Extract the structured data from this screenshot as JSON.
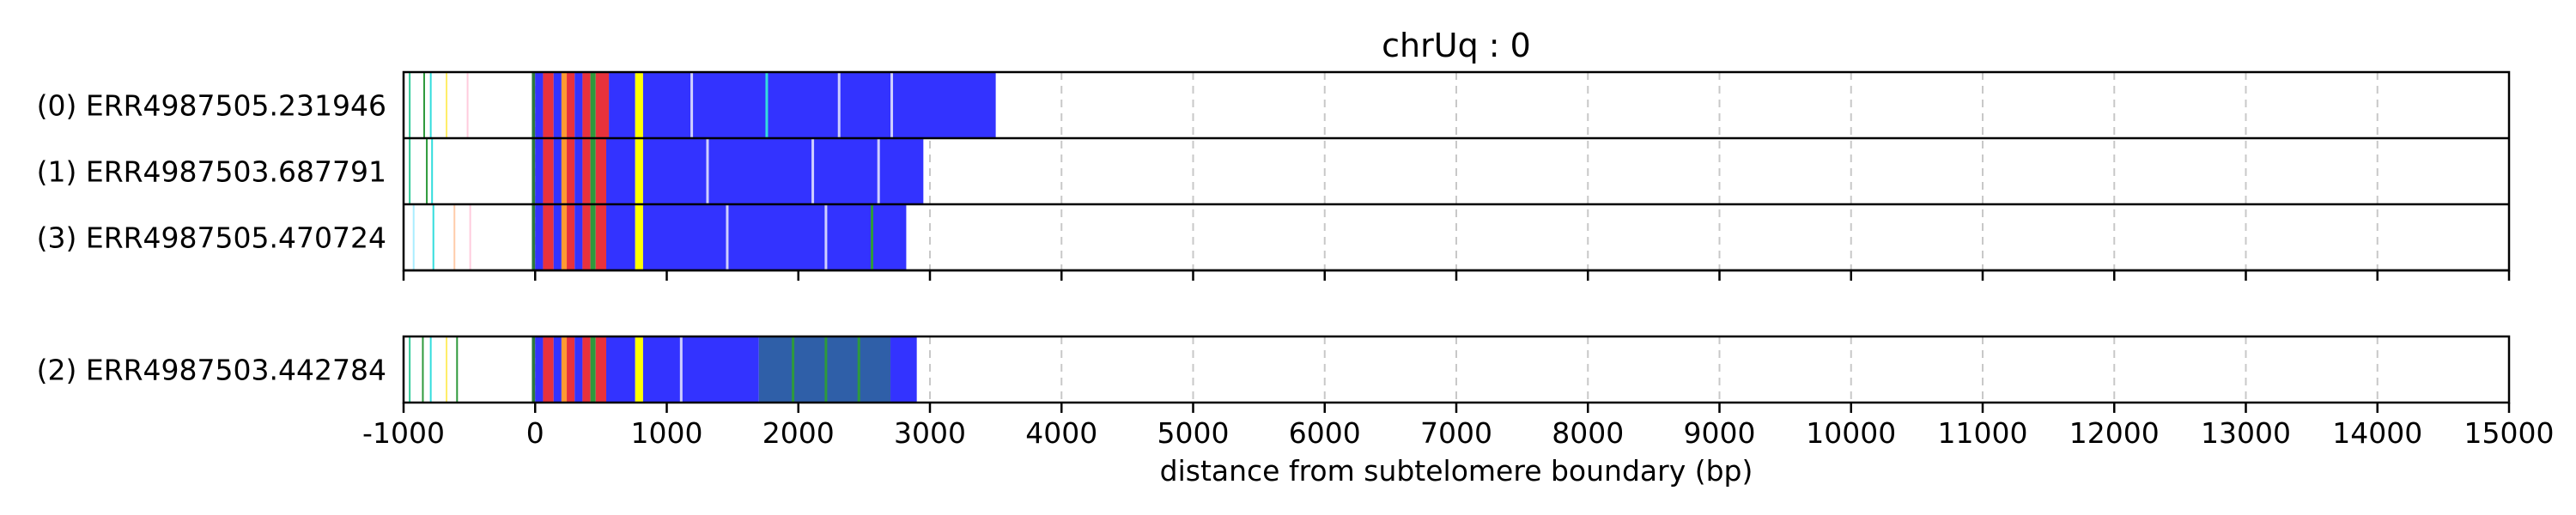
{
  "chart_data": {
    "type": "bar",
    "title": "chrUq : 0",
    "xlabel": "distance from subtelomere boundary (bp)",
    "xlim": [
      -1000,
      15000
    ],
    "xticks": [
      -1000,
      0,
      1000,
      2000,
      3000,
      4000,
      5000,
      6000,
      7000,
      8000,
      9000,
      10000,
      11000,
      12000,
      13000,
      14000,
      15000
    ],
    "grid": "vertical-dashed",
    "colors": {
      "repeat": "#3333ff",
      "dark": "#2f5fa8",
      "red": "#e8323c",
      "yellow": "#ffff00",
      "green": "#2e9a3c",
      "orange": "#ff9933",
      "cyan": "#33dddd",
      "light": "#cfcfff"
    },
    "groups": [
      {
        "reads": [
          {
            "label": "(0) ERR4987505.231946",
            "end": 3500,
            "segments": [
              {
                "start": -960,
                "end": -950,
                "color": "#33cc99"
              },
              {
                "start": -850,
                "end": -840,
                "color": "#2e9a3c"
              },
              {
                "start": -800,
                "end": -790,
                "color": "#33dddd"
              },
              {
                "start": -680,
                "end": -670,
                "color": "#ffee66"
              },
              {
                "start": -520,
                "end": -510,
                "color": "#ffccdd"
              },
              {
                "start": -25,
                "end": 0,
                "color": "#2e7a3c"
              },
              {
                "start": 0,
                "end": 60,
                "color": "#3333ff"
              },
              {
                "start": 60,
                "end": 140,
                "color": "#e8323c"
              },
              {
                "start": 140,
                "end": 200,
                "color": "#3333ff"
              },
              {
                "start": 200,
                "end": 240,
                "color": "#ff9933"
              },
              {
                "start": 240,
                "end": 300,
                "color": "#e8323c"
              },
              {
                "start": 300,
                "end": 360,
                "color": "#3333ff"
              },
              {
                "start": 360,
                "end": 420,
                "color": "#e8323c"
              },
              {
                "start": 420,
                "end": 460,
                "color": "#2e9a3c"
              },
              {
                "start": 460,
                "end": 560,
                "color": "#e8323c"
              },
              {
                "start": 560,
                "end": 760,
                "color": "#3333ff"
              },
              {
                "start": 760,
                "end": 820,
                "color": "#ffff00"
              },
              {
                "start": 820,
                "end": 3500,
                "color": "#3333ff"
              }
            ],
            "stripes": [
              {
                "at": 1750,
                "color": "#33dddd"
              },
              {
                "at": 1180,
                "color": "#cfcfff"
              },
              {
                "at": 2300,
                "color": "#cfcfff"
              },
              {
                "at": 2700,
                "color": "#cfcfff"
              }
            ]
          },
          {
            "label": "(1) ERR4987503.687791",
            "end": 2950,
            "segments": [
              {
                "start": -960,
                "end": -950,
                "color": "#33cc99"
              },
              {
                "start": -830,
                "end": -820,
                "color": "#2e9a3c"
              },
              {
                "start": -790,
                "end": -780,
                "color": "#33dddd"
              },
              {
                "start": -25,
                "end": 0,
                "color": "#2e7a3c"
              },
              {
                "start": 0,
                "end": 60,
                "color": "#3333ff"
              },
              {
                "start": 60,
                "end": 140,
                "color": "#e8323c"
              },
              {
                "start": 140,
                "end": 200,
                "color": "#3333ff"
              },
              {
                "start": 200,
                "end": 240,
                "color": "#ff9933"
              },
              {
                "start": 240,
                "end": 300,
                "color": "#e8323c"
              },
              {
                "start": 300,
                "end": 360,
                "color": "#3333ff"
              },
              {
                "start": 360,
                "end": 420,
                "color": "#e8323c"
              },
              {
                "start": 420,
                "end": 460,
                "color": "#2e9a3c"
              },
              {
                "start": 460,
                "end": 540,
                "color": "#e8323c"
              },
              {
                "start": 540,
                "end": 760,
                "color": "#3333ff"
              },
              {
                "start": 760,
                "end": 820,
                "color": "#ffff00"
              },
              {
                "start": 820,
                "end": 2950,
                "color": "#3333ff"
              }
            ],
            "stripes": [
              {
                "at": 1300,
                "color": "#cfcfff"
              },
              {
                "at": 2100,
                "color": "#cfcfff"
              },
              {
                "at": 2600,
                "color": "#cfcfff"
              }
            ]
          },
          {
            "label": "(3) ERR4987505.470724",
            "end": 2820,
            "segments": [
              {
                "start": -930,
                "end": -920,
                "color": "#aaeeff"
              },
              {
                "start": -780,
                "end": -770,
                "color": "#33dddd"
              },
              {
                "start": -620,
                "end": -610,
                "color": "#ffccaa"
              },
              {
                "start": -500,
                "end": -490,
                "color": "#ffccdd"
              },
              {
                "start": -25,
                "end": 0,
                "color": "#2e7a3c"
              },
              {
                "start": 0,
                "end": 60,
                "color": "#3333ff"
              },
              {
                "start": 60,
                "end": 140,
                "color": "#e8323c"
              },
              {
                "start": 140,
                "end": 200,
                "color": "#3333ff"
              },
              {
                "start": 200,
                "end": 240,
                "color": "#ff9933"
              },
              {
                "start": 240,
                "end": 300,
                "color": "#e8323c"
              },
              {
                "start": 300,
                "end": 360,
                "color": "#3333ff"
              },
              {
                "start": 360,
                "end": 420,
                "color": "#e8323c"
              },
              {
                "start": 420,
                "end": 460,
                "color": "#2e9a3c"
              },
              {
                "start": 460,
                "end": 540,
                "color": "#e8323c"
              },
              {
                "start": 540,
                "end": 760,
                "color": "#3333ff"
              },
              {
                "start": 760,
                "end": 820,
                "color": "#ffff00"
              },
              {
                "start": 820,
                "end": 2820,
                "color": "#3333ff"
              }
            ],
            "stripes": [
              {
                "at": 1450,
                "color": "#cfcfff"
              },
              {
                "at": 2200,
                "color": "#cfcfff"
              },
              {
                "at": 2550,
                "color": "#2e9a3c"
              }
            ]
          }
        ]
      },
      {
        "reads": [
          {
            "label": "(2) ERR4987503.442784",
            "end": 2900,
            "segments": [
              {
                "start": -960,
                "end": -950,
                "color": "#33cc99"
              },
              {
                "start": -860,
                "end": -850,
                "color": "#2e9a3c"
              },
              {
                "start": -800,
                "end": -790,
                "color": "#33dddd"
              },
              {
                "start": -680,
                "end": -670,
                "color": "#ffee66"
              },
              {
                "start": -600,
                "end": -590,
                "color": "#2e9a3c"
              },
              {
                "start": -25,
                "end": 0,
                "color": "#2e7a3c"
              },
              {
                "start": 0,
                "end": 60,
                "color": "#3333ff"
              },
              {
                "start": 60,
                "end": 140,
                "color": "#e8323c"
              },
              {
                "start": 140,
                "end": 200,
                "color": "#3333ff"
              },
              {
                "start": 200,
                "end": 240,
                "color": "#ff9933"
              },
              {
                "start": 240,
                "end": 300,
                "color": "#e8323c"
              },
              {
                "start": 300,
                "end": 360,
                "color": "#3333ff"
              },
              {
                "start": 360,
                "end": 420,
                "color": "#e8323c"
              },
              {
                "start": 420,
                "end": 460,
                "color": "#2e9a3c"
              },
              {
                "start": 460,
                "end": 540,
                "color": "#e8323c"
              },
              {
                "start": 540,
                "end": 760,
                "color": "#3333ff"
              },
              {
                "start": 760,
                "end": 820,
                "color": "#ffff00"
              },
              {
                "start": 820,
                "end": 1700,
                "color": "#3333ff"
              },
              {
                "start": 1700,
                "end": 2700,
                "color": "#2f5fa8"
              },
              {
                "start": 2700,
                "end": 2900,
                "color": "#3333ff"
              }
            ],
            "stripes": [
              {
                "at": 1950,
                "color": "#2e9a3c"
              },
              {
                "at": 2200,
                "color": "#2e9a3c"
              },
              {
                "at": 2450,
                "color": "#2e9a3c"
              },
              {
                "at": 1100,
                "color": "#cfcfff"
              }
            ]
          }
        ]
      }
    ]
  }
}
